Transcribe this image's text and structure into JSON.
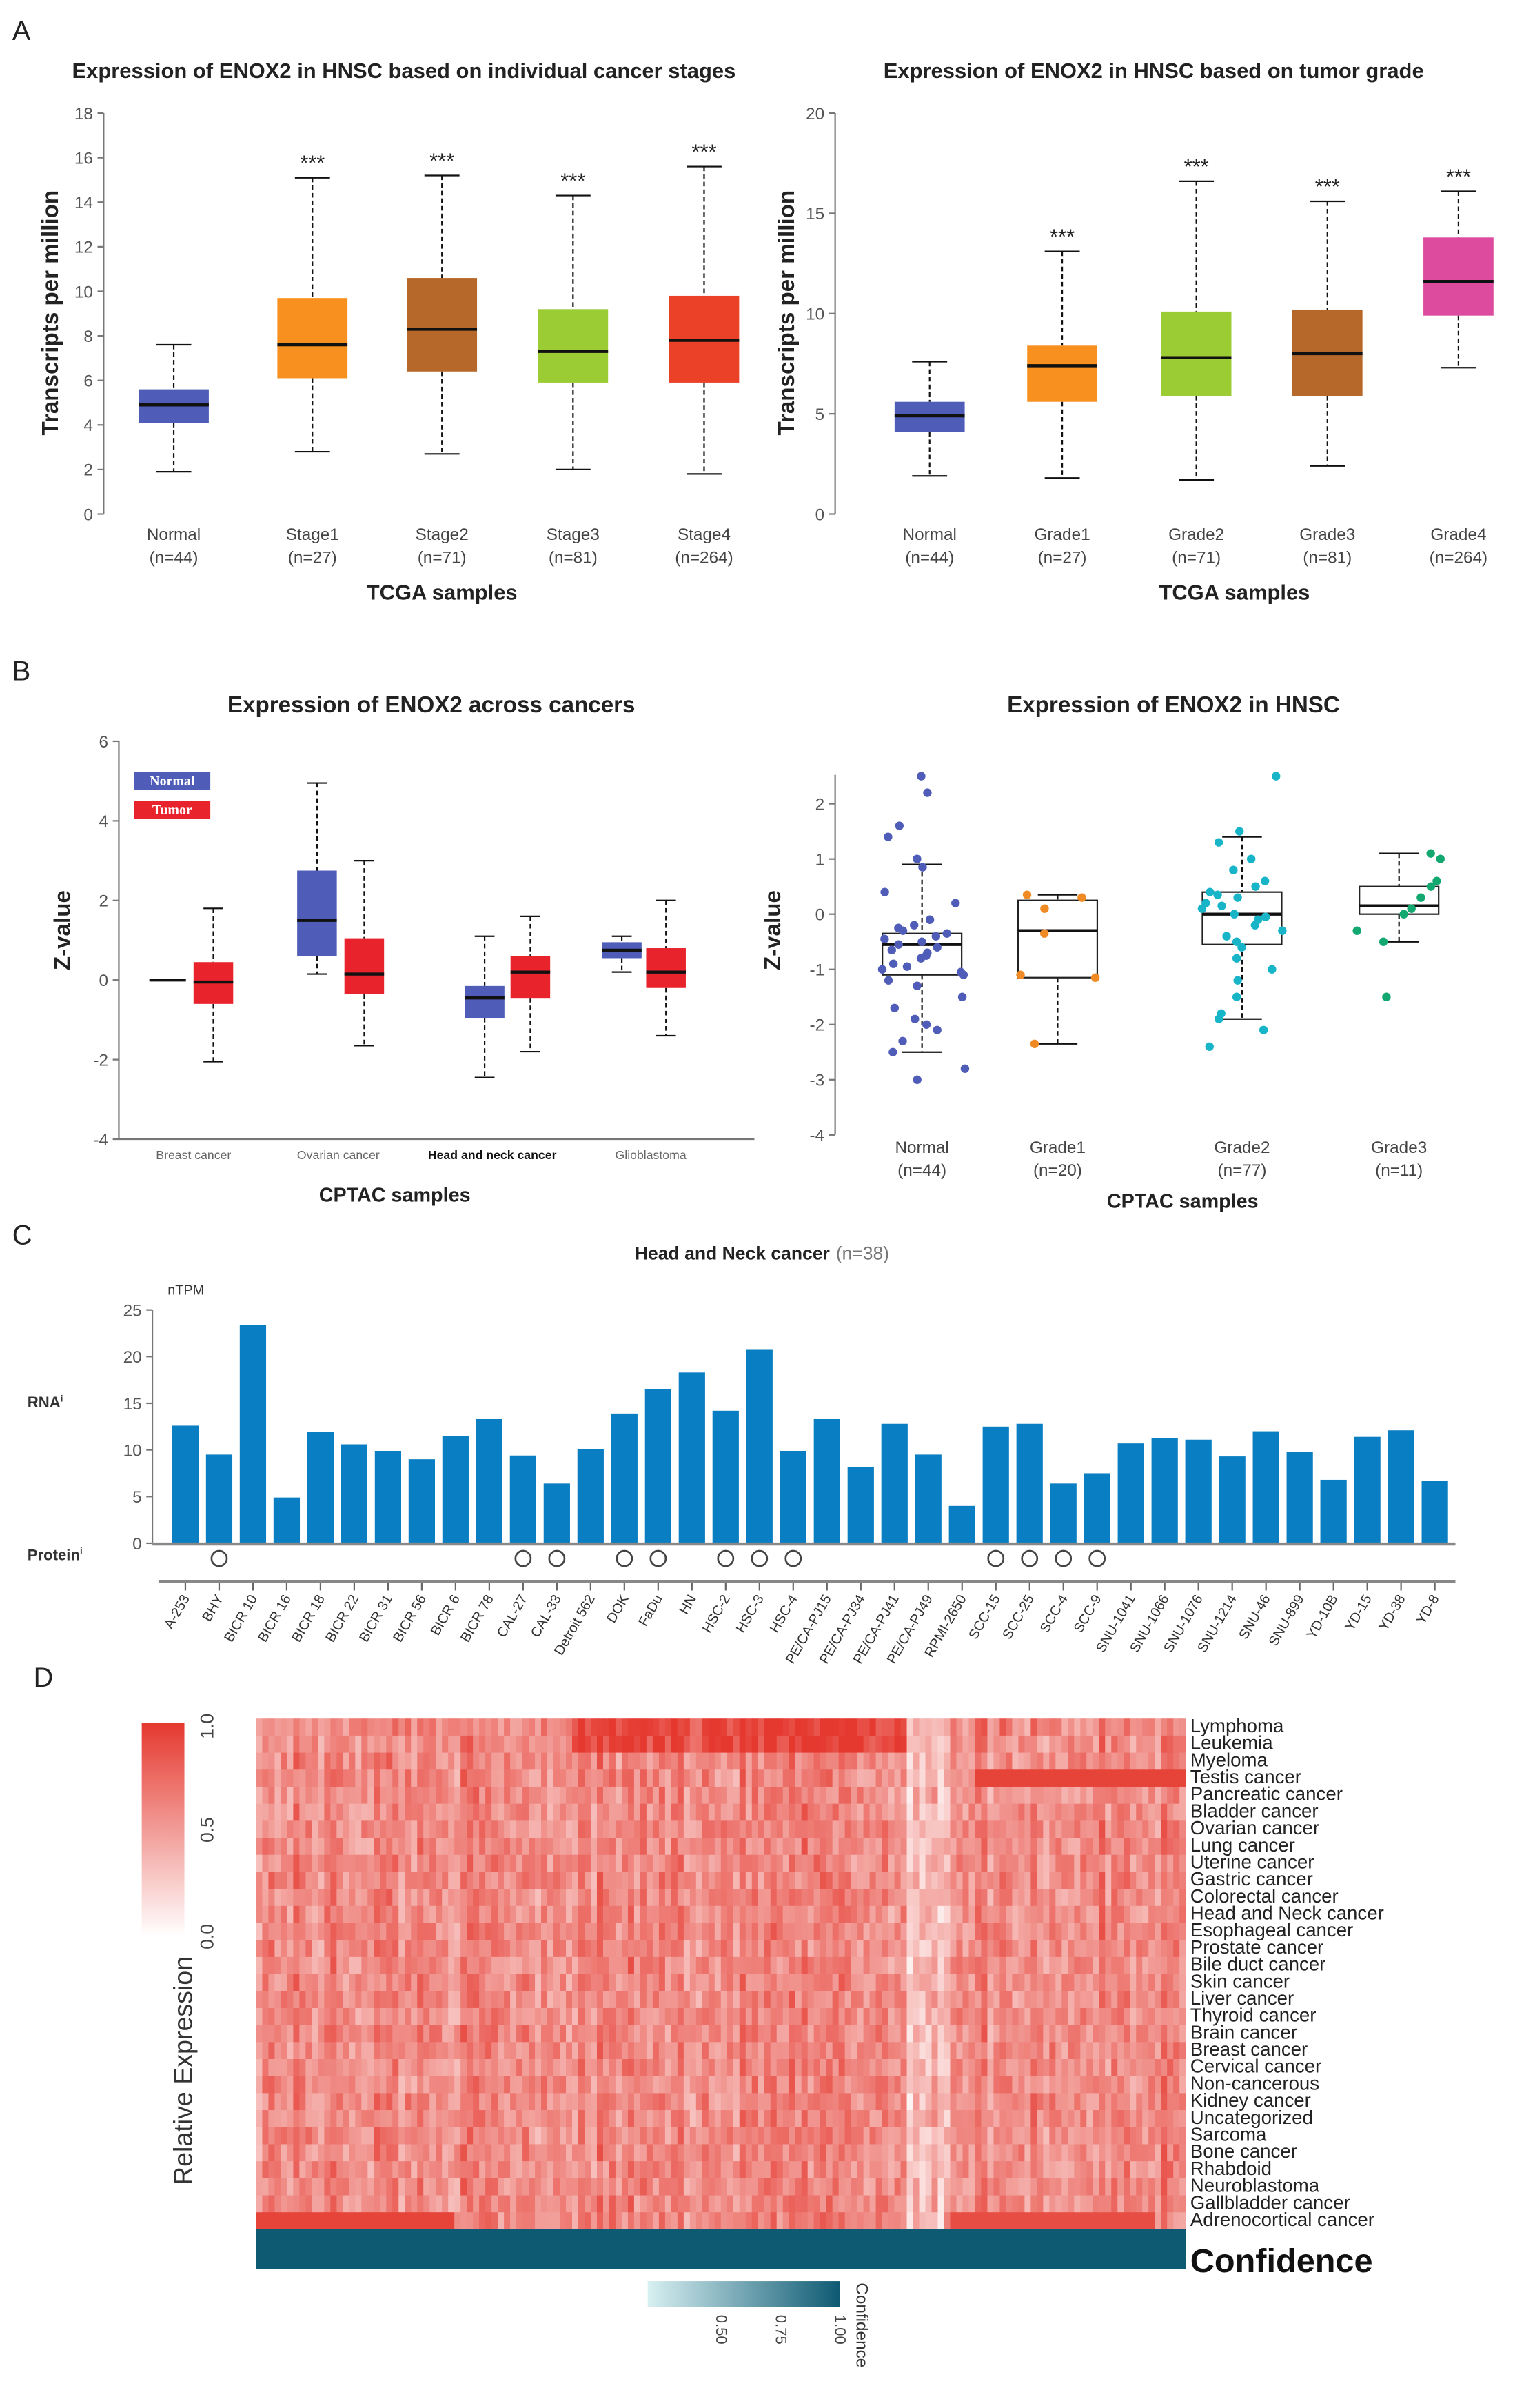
{
  "panels": {
    "a": "A",
    "b": "B",
    "c": "C",
    "d": "D"
  },
  "chart_data": [
    {
      "id": "a_left",
      "type": "boxplot",
      "title": "Expression of ENOX2 in HNSC based on individual cancer stages",
      "xlabel": "TCGA samples",
      "ylabel": "Transcripts per million",
      "ylim": [
        0,
        18
      ],
      "yticks": [
        0,
        2,
        4,
        6,
        8,
        10,
        12,
        14,
        16,
        18
      ],
      "significance": "***",
      "boxes": [
        {
          "label": "Normal",
          "n": "(n=44)",
          "min": 1.9,
          "q1": 4.1,
          "median": 4.9,
          "q3": 5.6,
          "max": 7.6,
          "color": "#4f5db8",
          "sig": false
        },
        {
          "label": "Stage1",
          "n": "(n=27)",
          "min": 2.8,
          "q1": 6.1,
          "median": 7.6,
          "q3": 9.7,
          "max": 15.1,
          "color": "#f7901e",
          "sig": true
        },
        {
          "label": "Stage2",
          "n": "(n=71)",
          "min": 2.7,
          "q1": 6.4,
          "median": 8.3,
          "q3": 10.6,
          "max": 15.2,
          "color": "#b5682a",
          "sig": true
        },
        {
          "label": "Stage3",
          "n": "(n=81)",
          "min": 2.0,
          "q1": 5.9,
          "median": 7.3,
          "q3": 9.2,
          "max": 14.3,
          "color": "#9ccc34",
          "sig": true
        },
        {
          "label": "Stage4",
          "n": "(n=264)",
          "min": 1.8,
          "q1": 5.9,
          "median": 7.8,
          "q3": 9.8,
          "max": 15.6,
          "color": "#ea4128",
          "sig": true
        }
      ]
    },
    {
      "id": "a_right",
      "type": "boxplot",
      "title": "Expression of ENOX2 in HNSC based on tumor grade",
      "xlabel": "TCGA samples",
      "ylabel": "Transcripts per million",
      "ylim": [
        0,
        20
      ],
      "yticks": [
        0,
        5,
        10,
        15,
        20
      ],
      "significance": "***",
      "boxes": [
        {
          "label": "Normal",
          "n": "(n=44)",
          "min": 1.9,
          "q1": 4.1,
          "median": 4.9,
          "q3": 5.6,
          "max": 7.6,
          "color": "#4f5db8",
          "sig": false
        },
        {
          "label": "Grade1",
          "n": "(n=27)",
          "min": 1.8,
          "q1": 5.6,
          "median": 7.4,
          "q3": 8.4,
          "max": 13.1,
          "color": "#f7901e",
          "sig": true
        },
        {
          "label": "Grade2",
          "n": "(n=71)",
          "min": 1.7,
          "q1": 5.9,
          "median": 7.8,
          "q3": 10.1,
          "max": 16.6,
          "color": "#9ccc34",
          "sig": true
        },
        {
          "label": "Grade3",
          "n": "(n=81)",
          "min": 2.4,
          "q1": 5.9,
          "median": 8.0,
          "q3": 10.2,
          "max": 15.6,
          "color": "#b5682a",
          "sig": true
        },
        {
          "label": "Grade4",
          "n": "(n=264)",
          "min": 7.3,
          "q1": 9.9,
          "median": 11.6,
          "q3": 13.8,
          "max": 16.1,
          "color": "#dd4b9e",
          "sig": true
        }
      ]
    },
    {
      "id": "b_left",
      "type": "boxplot",
      "title": "Expression of ENOX2 across cancers",
      "xlabel": "CPTAC samples",
      "ylabel": "Z-value",
      "ylim": [
        -4,
        6
      ],
      "yticks": [
        -4,
        -2,
        0,
        2,
        4,
        6
      ],
      "legend": {
        "position": "top-left",
        "entries": [
          {
            "name": "Normal",
            "color": "#4f5db8"
          },
          {
            "name": "Tumor",
            "color": "#e8232b"
          }
        ]
      },
      "groups": [
        {
          "label": "Breast cancer",
          "normal": {
            "min": 0,
            "q1": 0,
            "median": 0,
            "q3": 0,
            "max": 0
          },
          "tumor": {
            "min": -2.05,
            "q1": -0.6,
            "median": -0.05,
            "q3": 0.45,
            "max": 1.8
          }
        },
        {
          "label": "Ovarian cancer",
          "normal": {
            "min": 0.15,
            "q1": 0.6,
            "median": 1.5,
            "q3": 2.75,
            "max": 4.95
          },
          "tumor": {
            "min": -1.65,
            "q1": -0.35,
            "median": 0.15,
            "q3": 1.05,
            "max": 3.0
          }
        },
        {
          "label": "Head and neck cancer",
          "normal": {
            "min": -2.45,
            "q1": -0.95,
            "median": -0.45,
            "q3": -0.15,
            "max": 1.1
          },
          "tumor": {
            "min": -1.8,
            "q1": -0.45,
            "median": 0.2,
            "q3": 0.6,
            "max": 1.6
          }
        },
        {
          "label": "Glioblastoma",
          "normal": {
            "min": 0.2,
            "q1": 0.55,
            "median": 0.75,
            "q3": 0.95,
            "max": 1.1
          },
          "tumor": {
            "min": -1.4,
            "q1": -0.2,
            "median": 0.2,
            "q3": 0.8,
            "max": 2.0
          }
        }
      ]
    },
    {
      "id": "b_right",
      "type": "boxplot",
      "title": "Expression of ENOX2 in HNSC",
      "xlabel": "CPTAC samples",
      "ylabel": "Z-value",
      "ylim": [
        -4,
        2.5
      ],
      "yticks": [
        -4,
        -3,
        -2,
        -1,
        0,
        1,
        2
      ],
      "boxes": [
        {
          "label": "Normal",
          "n": "(n=44)",
          "min": -2.5,
          "q1": -1.1,
          "median": -0.55,
          "q3": -0.35,
          "max": 0.9,
          "color": "#4f5db8",
          "points": [
            2.5,
            2.2,
            1.4,
            1.6,
            1.0,
            0.85,
            0.4,
            0.2,
            -0.1,
            -0.2,
            -0.3,
            -0.35,
            -0.4,
            -0.45,
            -0.5,
            -0.55,
            -0.6,
            -0.65,
            -0.7,
            -0.8,
            -0.9,
            -1.0,
            -1.05,
            -1.1,
            -1.2,
            -1.3,
            -1.5,
            -1.7,
            -1.9,
            -2.0,
            -2.1,
            -2.3,
            -2.5,
            -2.8,
            -3.0,
            -0.25,
            -0.75,
            -0.95
          ]
        },
        {
          "label": "Grade1",
          "n": "(n=20)",
          "min": -2.35,
          "q1": -1.15,
          "median": -0.3,
          "q3": 0.25,
          "max": 0.35,
          "color": "#f08a24",
          "points": [
            0.35,
            0.3,
            0.1,
            -0.35,
            -1.1,
            -1.15,
            -2.35
          ]
        },
        {
          "label": "Grade2",
          "n": "(n=77)",
          "min": -1.9,
          "q1": -0.55,
          "median": 0.0,
          "q3": 0.4,
          "max": 1.4,
          "color": "#18b5c8",
          "points": [
            2.5,
            1.5,
            1.3,
            1.0,
            0.8,
            0.6,
            0.5,
            0.4,
            0.35,
            0.3,
            0.2,
            0.1,
            0.0,
            -0.1,
            -0.2,
            -0.3,
            -0.4,
            -0.5,
            -0.6,
            -0.8,
            -1.0,
            -1.2,
            -1.5,
            -1.8,
            -1.9,
            -2.1,
            -2.4,
            0.15,
            -0.05
          ]
        },
        {
          "label": "Grade3",
          "n": "(n=11)",
          "min": -0.5,
          "q1": 0.0,
          "median": 0.15,
          "q3": 0.5,
          "max": 1.1,
          "color": "#13a870",
          "points": [
            1.1,
            1.0,
            0.6,
            0.5,
            0.3,
            0.1,
            0.0,
            -0.3,
            -0.5,
            -1.5
          ]
        }
      ]
    },
    {
      "id": "c",
      "type": "bar",
      "title": "Head and Neck cancer",
      "title_suffix": "(n=38)",
      "yunit": "nTPM",
      "row_labels": {
        "rna": "RNA",
        "protein": "Protein",
        "info": "i"
      },
      "ylim": [
        0,
        25
      ],
      "yticks": [
        0,
        5,
        10,
        15,
        20,
        25
      ],
      "color": "#0a7ec2",
      "categories": [
        "A-253",
        "BHY",
        "BICR 10",
        "BICR 16",
        "BICR 18",
        "BICR 22",
        "BICR 31",
        "BICR 56",
        "BICR 6",
        "BICR 78",
        "CAL-27",
        "CAL-33",
        "Detroit 562",
        "DOK",
        "FaDu",
        "HN",
        "HSC-2",
        "HSC-3",
        "HSC-4",
        "PE/CA-PJ15",
        "PE/CA-PJ34",
        "PE/CA-PJ41",
        "PE/CA-PJ49",
        "RPMI-2650",
        "SCC-15",
        "SCC-25",
        "SCC-4",
        "SCC-9",
        "SNU-1041",
        "SNU-1066",
        "SNU-1076",
        "SNU-1214",
        "SNU-46",
        "SNU-899",
        "YD-10B",
        "YD-15",
        "YD-38",
        "YD-8"
      ],
      "values": [
        12.6,
        9.5,
        23.4,
        4.9,
        11.9,
        10.6,
        9.9,
        9.0,
        11.5,
        13.3,
        9.4,
        6.4,
        10.1,
        13.9,
        16.5,
        18.3,
        14.2,
        20.8,
        9.9,
        13.3,
        8.2,
        12.8,
        9.5,
        4.0,
        12.5,
        12.8,
        6.4,
        7.5,
        10.7,
        11.3,
        11.1,
        9.3,
        12.0,
        9.8,
        6.8,
        11.4,
        12.1,
        6.7
      ],
      "protein_detected": [
        "BHY",
        "CAL-27",
        "CAL-33",
        "DOK",
        "FaDu",
        "HSC-2",
        "HSC-3",
        "HSC-4",
        "SCC-15",
        "SCC-25",
        "SCC-4",
        "SCC-9"
      ]
    },
    {
      "id": "d",
      "type": "heatmap",
      "ylabel": "Relative Expression",
      "colorbar": {
        "ticks": [
          "0.0",
          "0.5",
          "1.0"
        ],
        "low": "#ffffff",
        "high": "#e5392f"
      },
      "rows": [
        "Lymphoma",
        "Leukemia",
        "Myeloma",
        "Testis cancer",
        "Pancreatic cancer",
        "Bladder cancer",
        "Ovarian cancer",
        "Lung cancer",
        "Uterine cancer",
        "Gastric cancer",
        "Colorectal cancer",
        "Head and Neck cancer",
        "Esophageal cancer",
        "Prostate cancer",
        "Bile duct cancer",
        "Skin cancer",
        "Liver cancer",
        "Thyroid cancer",
        "Brain cancer",
        "Breast cancer",
        "Cervical cancer",
        "Non-cancerous",
        "Kidney cancer",
        "Uncategorized",
        "Sarcoma",
        "Bone cancer",
        "Rhabdoid",
        "Neuroblastoma",
        "Gallbladder cancer",
        "Adrenocortical cancer"
      ],
      "annotation": {
        "label": "Confidence",
        "color": "#0e5a73"
      },
      "confidence_legend": {
        "title": "Confidence",
        "ticks": [
          "0.50",
          "0.75",
          "1.00"
        ],
        "low": "#d8f0f2",
        "high": "#0e5a73"
      }
    }
  ]
}
